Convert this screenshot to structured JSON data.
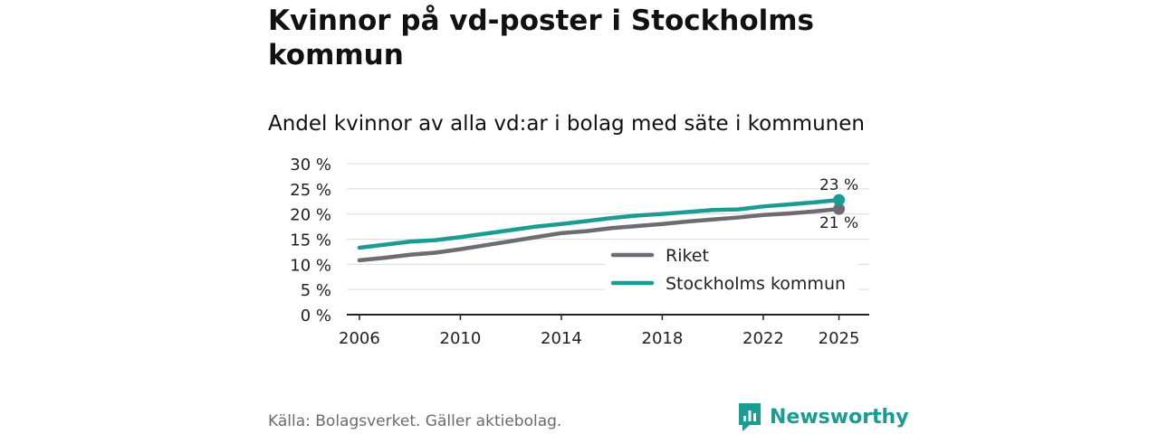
{
  "header": {
    "title": "Kvinnor på vd-poster i Stockholms kommun",
    "subtitle": "Andel kvinnor av alla vd:ar i bolag med säte i kommunen"
  },
  "footer": {
    "source": "Källa: Bolagsverket. Gäller aktiebolag.",
    "brand": "Newsworthy",
    "brand_color": "#1a9c93"
  },
  "chart_data": {
    "type": "line",
    "title": "Andel kvinnor av alla vd:ar i bolag med säte i kommunen",
    "xlabel": "",
    "ylabel": "",
    "x": [
      2006,
      2007,
      2008,
      2009,
      2010,
      2011,
      2012,
      2013,
      2014,
      2015,
      2016,
      2017,
      2018,
      2019,
      2020,
      2021,
      2022,
      2023,
      2024,
      2025
    ],
    "xticks": [
      "2006",
      "2010",
      "2014",
      "2018",
      "2022",
      "2025"
    ],
    "ylim": [
      0,
      30
    ],
    "yticks": [
      "0 %",
      "5 %",
      "10 %",
      "15 %",
      "20 %",
      "25 %",
      "30 %"
    ],
    "grid": true,
    "legend_position": "lower-right",
    "series": [
      {
        "name": "Riket",
        "color": "#6d6c72",
        "values": [
          10.8,
          11.3,
          11.9,
          12.3,
          13.0,
          13.8,
          14.6,
          15.4,
          16.2,
          16.6,
          17.2,
          17.6,
          18.0,
          18.5,
          18.9,
          19.3,
          19.8,
          20.1,
          20.5,
          21.0
        ],
        "end_label": "21 %"
      },
      {
        "name": "Stockholms kommun",
        "color": "#1a9c93",
        "values": [
          13.3,
          13.9,
          14.5,
          14.8,
          15.4,
          16.1,
          16.8,
          17.5,
          18.0,
          18.6,
          19.2,
          19.7,
          20.0,
          20.4,
          20.8,
          20.9,
          21.5,
          21.9,
          22.3,
          22.8
        ],
        "end_label": "23 %"
      }
    ]
  }
}
